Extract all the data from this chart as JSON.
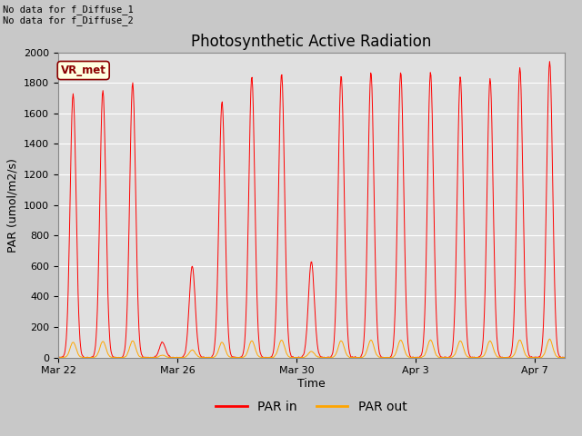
{
  "title": "Photosynthetic Active Radiation",
  "xlabel": "Time",
  "ylabel": "PAR (umol/m2/s)",
  "ylim": [
    0,
    2000
  ],
  "fig_bg_color": "#c8c8c8",
  "plot_bg_color": "#e0e0e0",
  "legend_labels": [
    "PAR in",
    "PAR out"
  ],
  "legend_colors": [
    "red",
    "orange"
  ],
  "annotation_text": "No data for f_Diffuse_1\nNo data for f_Diffuse_2",
  "box_label": "VR_met",
  "xtick_labels": [
    "Mar 22",
    "Mar 26",
    "Mar 30",
    "Apr 3",
    "Apr 7"
  ],
  "xtick_positions": [
    0,
    4,
    8,
    12,
    16
  ],
  "ytick_vals": [
    0,
    200,
    400,
    600,
    800,
    1000,
    1200,
    1400,
    1600,
    1800,
    2000
  ],
  "title_fontsize": 12,
  "axis_fontsize": 9,
  "tick_fontsize": 8,
  "par_in_peaks": [
    1730,
    1750,
    1800,
    100,
    600,
    1680,
    1840,
    1860,
    630,
    1850,
    1870,
    1870,
    1870,
    1840,
    1830,
    1900,
    1940
  ],
  "par_out_peaks": [
    100,
    105,
    110,
    15,
    50,
    100,
    110,
    115,
    40,
    110,
    115,
    115,
    115,
    110,
    110,
    115,
    120
  ],
  "n_days": 17,
  "samples_per_day": 48
}
